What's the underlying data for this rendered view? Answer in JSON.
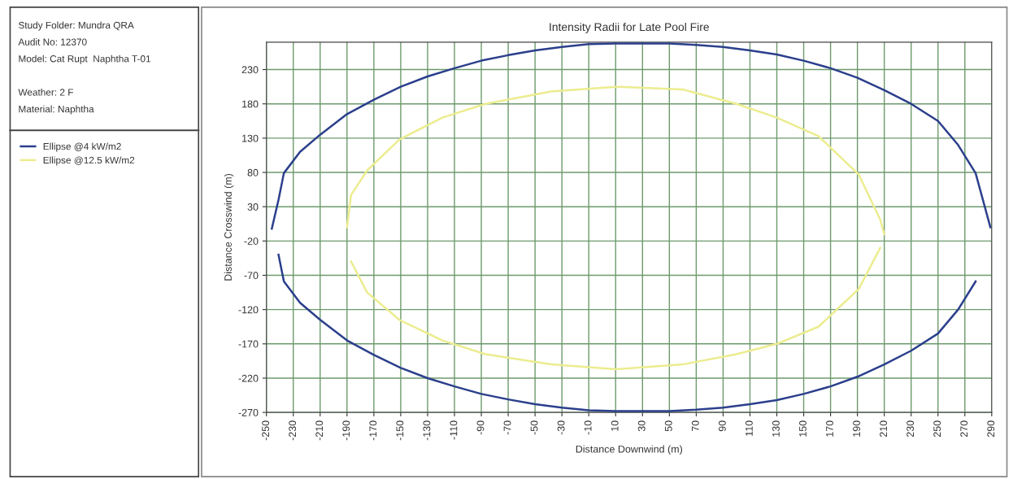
{
  "chart_data": {
    "type": "line",
    "title": "Intensity Radii for Late Pool Fire",
    "xlabel": "Distance Downwind (m)",
    "ylabel": "Distance Crosswind (m)",
    "annotations": [
      "Study Folder: Mundra QRA",
      "Audit No: 12370",
      "Model: Cat Rupt  Naphtha T-01",
      "Weather: 2 F",
      "Material: Naphtha"
    ],
    "series": [
      {
        "name": "Ellipse @4 kW/m2",
        "color": "#2b3f8c",
        "x": [
          -246,
          -241,
          -237,
          -225,
          -210,
          -190,
          -170,
          -150,
          -130,
          -110,
          -90,
          -70,
          -50,
          -30,
          -10,
          10,
          30,
          50,
          70,
          90,
          110,
          130,
          150,
          170,
          190,
          210,
          230,
          250,
          265,
          278,
          289
        ],
        "values": [
          -2,
          40,
          79,
          110,
          135,
          165,
          186,
          205,
          220,
          232,
          243,
          251,
          258,
          263,
          267,
          268,
          268,
          268,
          266,
          263,
          258,
          252,
          243,
          232,
          218,
          200,
          180,
          155,
          120,
          79,
          0
        ]
      },
      {
        "color": "#2b3f8c",
        "x": [
          -241,
          -237,
          -225,
          -210,
          -190,
          -170,
          -150,
          -130,
          -110,
          -90,
          -70,
          -50,
          -30,
          -10,
          10,
          30,
          50,
          70,
          90,
          110,
          130,
          150,
          170,
          190,
          210,
          230,
          250,
          265,
          278
        ],
        "values": [
          -40,
          -79,
          -110,
          -135,
          -165,
          -186,
          -205,
          -220,
          -232,
          -243,
          -251,
          -258,
          -263,
          -267,
          -268,
          -268,
          -268,
          -266,
          -263,
          -258,
          -252,
          -243,
          -232,
          -218,
          -200,
          -180,
          -155,
          -120,
          -79
        ]
      },
      {
        "name": "Ellipse @12.5 kW/m2",
        "color": "#ecec90",
        "x": [
          -190,
          -187,
          -175,
          -151,
          -119,
          -87,
          -38,
          10,
          60,
          100,
          130,
          161,
          191,
          207,
          210
        ],
        "values": [
          0,
          47,
          83,
          128,
          160,
          180,
          198,
          205,
          201,
          180,
          160,
          133,
          77,
          11,
          -10
        ]
      },
      {
        "color": "#ecec90",
        "x": [
          -187,
          -175,
          -151,
          -119,
          -87,
          -38,
          10,
          60,
          100,
          130,
          161,
          191,
          207
        ],
        "values": [
          -50,
          -95,
          -135,
          -165,
          -185,
          -200,
          -207,
          -200,
          -185,
          -170,
          -145,
          -90,
          -30
        ]
      }
    ],
    "xlim": [
      -250,
      290
    ],
    "xticks": [
      -250,
      -230,
      -210,
      -190,
      -170,
      -150,
      -130,
      -110,
      -90,
      -70,
      -50,
      -30,
      -10,
      10,
      30,
      50,
      70,
      90,
      110,
      130,
      150,
      170,
      190,
      210,
      230,
      250,
      270,
      290
    ],
    "ylim": [
      -270,
      270
    ],
    "yticks": [
      -270,
      -220,
      -170,
      -120,
      -70,
      -20,
      30,
      80,
      130,
      180,
      230
    ],
    "grid": true,
    "legend": "left",
    "marker": "none",
    "line_style": "solid"
  }
}
